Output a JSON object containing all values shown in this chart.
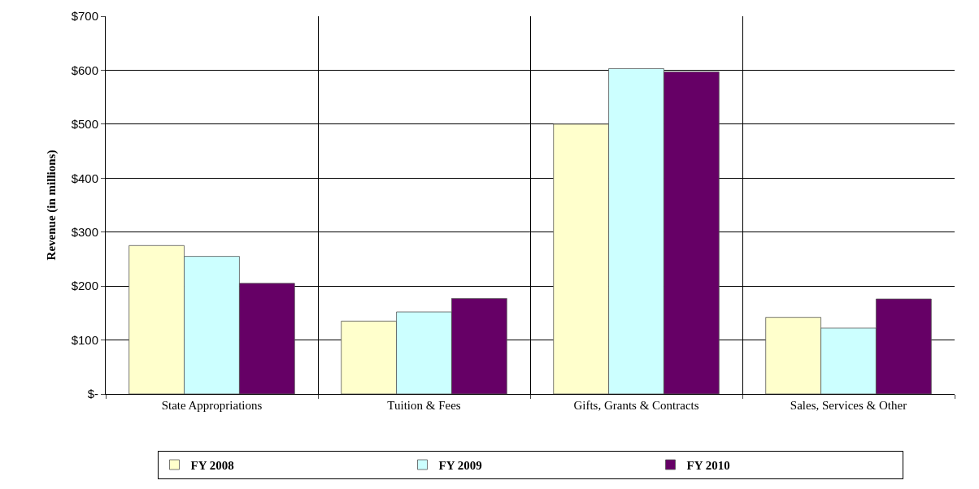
{
  "chart_data": {
    "type": "bar",
    "ylabel": "Revenue (in millions)",
    "categories": [
      "State Appropriations",
      "Tuition & Fees",
      "Gifts, Grants & Contracts",
      "Sales, Services & Other"
    ],
    "series": [
      {
        "name": "FY 2008",
        "color": "#ffffcc",
        "values": [
          275,
          135,
          500,
          142
        ]
      },
      {
        "name": "FY 2009",
        "color": "#ccffff",
        "values": [
          255,
          152,
          603,
          122
        ]
      },
      {
        "name": "FY 2010",
        "color": "#660066",
        "values": [
          205,
          177,
          597,
          176
        ]
      }
    ],
    "ylim": [
      0,
      700
    ],
    "yticks": [
      {
        "value": 0,
        "label": "$-"
      },
      {
        "value": 100,
        "label": "$100"
      },
      {
        "value": 200,
        "label": "$200"
      },
      {
        "value": 300,
        "label": "$300"
      },
      {
        "value": 400,
        "label": "$400"
      },
      {
        "value": 500,
        "label": "$500"
      },
      {
        "value": 600,
        "label": "$600"
      },
      {
        "value": 700,
        "label": "$700"
      }
    ],
    "grid": true,
    "legend": "bottom"
  }
}
